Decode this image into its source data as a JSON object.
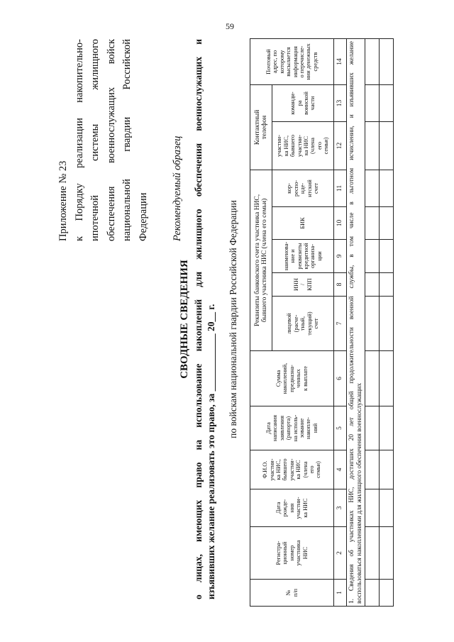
{
  "page_number": "59",
  "appendix": {
    "lines": [
      "Приложение № 23",
      "к Порядку реализации накопительно-",
      "ипотечной системы жилищного",
      "обеспечения военнослужащих войск",
      "национальной гвардии Российской",
      "Федерации"
    ],
    "sample": "Рекомендуемый образец"
  },
  "title": "СВОДНЫЕ СВЕДЕНИЯ",
  "subtitle": {
    "line1": "о лицах, имеющих право на использование накоплений для жилищного обеспечения военнослужащих и",
    "line2": "изъявивших желание реализовать это право, за ____________ 20__ г."
  },
  "forces": "по войскам национальной гвардии Российской Федерации",
  "table": {
    "group_bank": "Реквизиты банковского счета участника НИС,\nбывшего участника НИС (члена его семьи)",
    "group_phone": "Контактный\nтелефон",
    "columns": [
      "№\nп/п",
      "Регистра-\nционный\nномер\nучастника\nНИС",
      "Дата\nрожде-\nния\nучастни-\nка НИС",
      "Ф.И.О.\nучастни-\nка НИС,\nбывшего\nучастни-\nка НИС\n(члена\nего\nсемьи)",
      "Дата\nнаписания\nзаявления\n(рапорта)\nна исполь-\nзование\nнакопле-\nний",
      "Сумма\nнакоплений,\nпредназна-\nченных\nк выплате",
      "лицевой\n(расче-\nтный,\nтекущий)\nсчет",
      "ИНН\n/\nКПП",
      "наименова-\nние и\nреквизиты\nкредитной\nорганиза-\nции",
      "БИК",
      "кор-\nреспо-\nнде-\nнтский\nсчет",
      "участни-\nка НИС,\nбывшего\nучастни-\nка НИС\n(члена\nего\nсемьи)",
      "команди-\nра\nвоинской\nчасти",
      "Почтовый\nадрес, по\nкоторому\nвысылается\nинформация\nо перечисле-\nнии денежных\nсредств"
    ],
    "numbers": [
      "1",
      "2",
      "3",
      "4",
      "5",
      "6",
      "7",
      "8",
      "9",
      "10",
      "11",
      "12",
      "13",
      "14"
    ],
    "section_line1": "1. Сведения об участниках НИС, достигших 20 лет общей продолжительности военной службы, в том числе в льготном исчислении, и изъявивших желание",
    "section_line2": "воспользоваться накоплениями для жилищного обеспечения военнослужащих"
  }
}
